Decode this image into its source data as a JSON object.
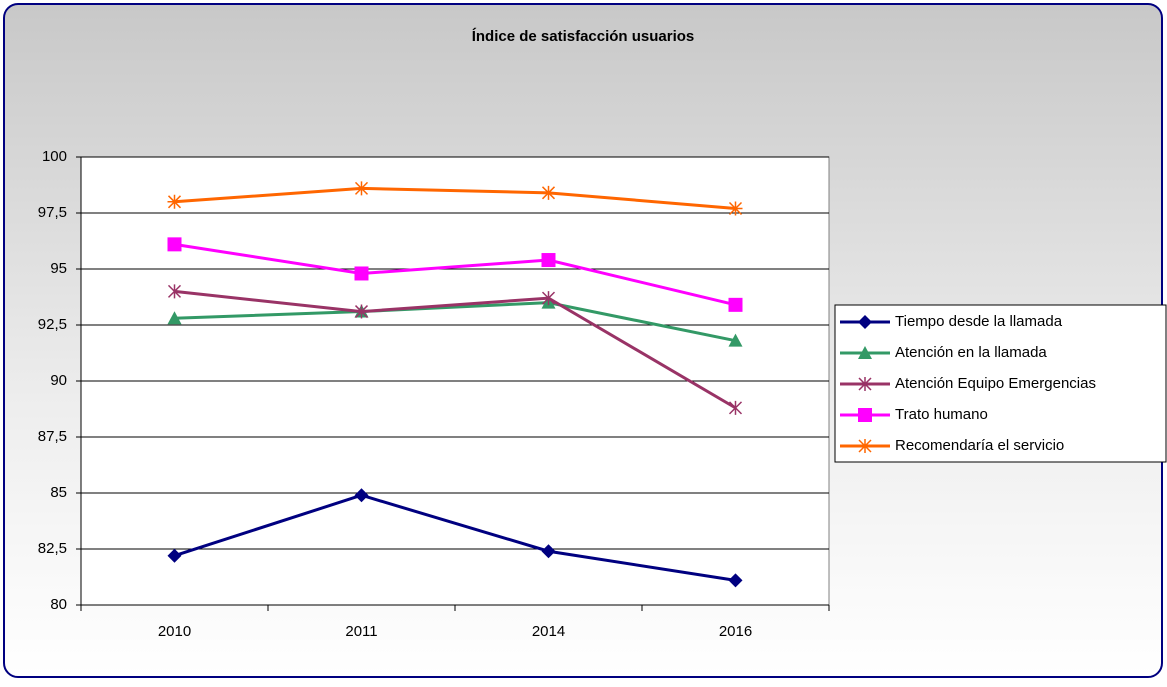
{
  "chart_data": {
    "type": "line",
    "title": "Índice de satisfacción usuarios",
    "categories": [
      "2010",
      "2011",
      "2014",
      "2016"
    ],
    "series": [
      {
        "name": "Tiempo desde la llamada",
        "color": "#000080",
        "marker": "diamond",
        "values": [
          82.2,
          84.9,
          82.4,
          81.1
        ]
      },
      {
        "name": "Atención en la llamada",
        "color": "#339966",
        "marker": "triangle",
        "values": [
          92.8,
          93.1,
          93.5,
          91.8
        ]
      },
      {
        "name": "Atención Equipo Emergencias",
        "color": "#993366",
        "marker": "star",
        "values": [
          94.0,
          93.1,
          93.7,
          88.8
        ]
      },
      {
        "name": "Trato humano",
        "color": "#ff00ff",
        "marker": "square",
        "values": [
          96.1,
          94.8,
          95.4,
          93.4
        ]
      },
      {
        "name": "Recomendaría el servicio",
        "color": "#ff6600",
        "marker": "asterisk",
        "values": [
          98.0,
          98.6,
          98.4,
          97.7
        ]
      }
    ],
    "ylim": [
      80,
      100
    ],
    "yticks": [
      80,
      {
        "value": 82.5,
        "label": "82,5"
      },
      85,
      {
        "value": 87.5,
        "label": "87,5"
      },
      90,
      {
        "value": 92.5,
        "label": "92,5"
      },
      95,
      {
        "value": 97.5,
        "label": "97,5"
      },
      100
    ],
    "grid": true,
    "legend": "right"
  }
}
